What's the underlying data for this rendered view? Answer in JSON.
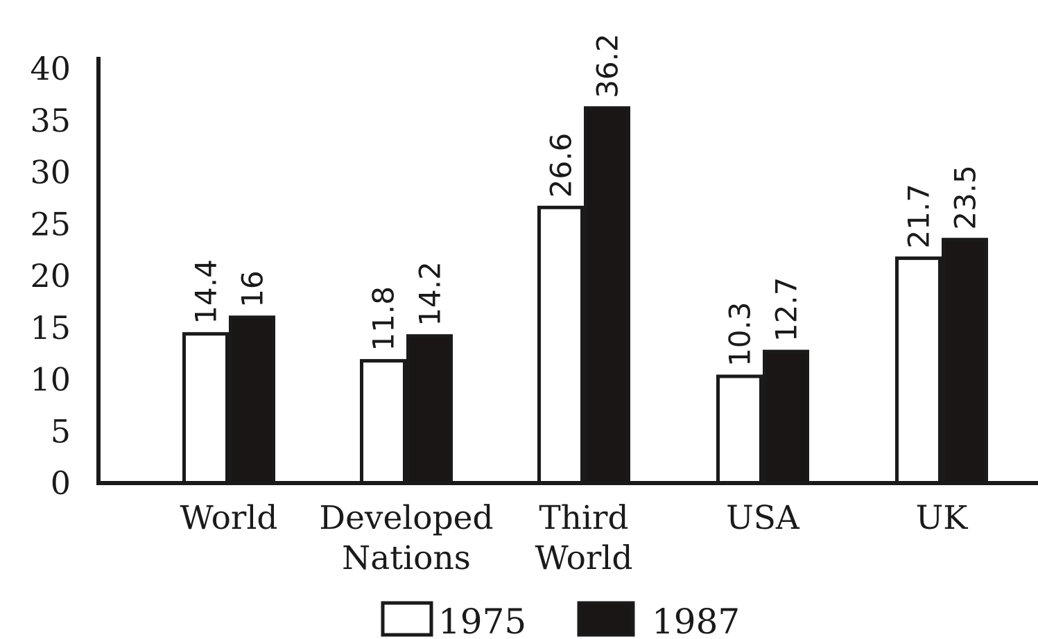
{
  "chart_data": {
    "type": "bar",
    "categories": [
      [
        "World"
      ],
      [
        "Developed",
        "Nations"
      ],
      [
        "Third",
        "World"
      ],
      [
        "USA"
      ],
      [
        "UK"
      ]
    ],
    "series": [
      {
        "name": "1975",
        "values": [
          14.4,
          11.8,
          26.6,
          10.3,
          21.7
        ],
        "fill": "#ffffff"
      },
      {
        "name": "1987",
        "values": [
          16,
          14.2,
          36.2,
          12.7,
          23.5
        ],
        "fill": "#1a1616"
      }
    ],
    "ylim": [
      0,
      40
    ],
    "yticks": [
      0,
      5,
      10,
      15,
      20,
      25,
      30,
      35,
      40
    ],
    "title": "",
    "xlabel": "",
    "ylabel": "",
    "grid": false,
    "legend_position": "bottom"
  }
}
